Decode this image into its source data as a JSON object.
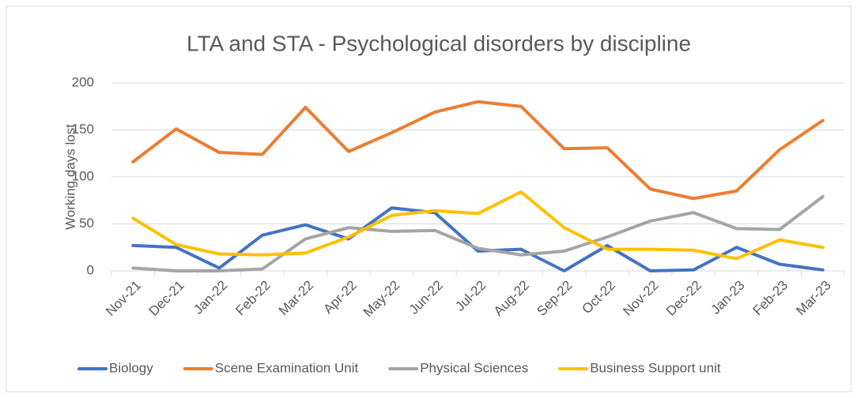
{
  "chart_data": {
    "type": "line",
    "title": "LTA and STA -  Psychological disorders by discipline",
    "y_label": "Working days lost",
    "categories": [
      "Nov-21",
      "Dec-21",
      "Jan-22",
      "Feb-22",
      "Mar-22",
      "Apr-22",
      "May-22",
      "Jun-22",
      "Jul-22",
      "Aug-22",
      "Sep-22",
      "Oct-22",
      "Nov-22",
      "Dec-22",
      "Jan-23",
      "Feb-23",
      "Mar-23"
    ],
    "series": [
      {
        "name": "Biology",
        "color": "#4472c4",
        "values": [
          27,
          25,
          3,
          38,
          49,
          34,
          67,
          62,
          21,
          23,
          0,
          27,
          0,
          1,
          25,
          7,
          1
        ]
      },
      {
        "name": "Scene Examination Unit",
        "color": "#ed7d31",
        "values": [
          116,
          151,
          126,
          124,
          174,
          127,
          147,
          169,
          180,
          175,
          130,
          131,
          87,
          77,
          85,
          129,
          160
        ]
      },
      {
        "name": "Physical Sciences",
        "color": "#a5a5a5",
        "values": [
          3,
          0,
          0,
          2,
          34,
          46,
          42,
          43,
          24,
          17,
          21,
          36,
          53,
          62,
          45,
          44,
          79
        ]
      },
      {
        "name": "Business Support unit",
        "color": "#ffc000",
        "values": [
          56,
          28,
          18,
          17,
          19,
          36,
          59,
          64,
          61,
          84,
          46,
          23,
          23,
          22,
          13,
          33,
          25
        ]
      }
    ],
    "ylim": [
      0,
      200
    ],
    "yticks": [
      0,
      50,
      100,
      150,
      200
    ],
    "grid": true,
    "legend": "bottom"
  }
}
